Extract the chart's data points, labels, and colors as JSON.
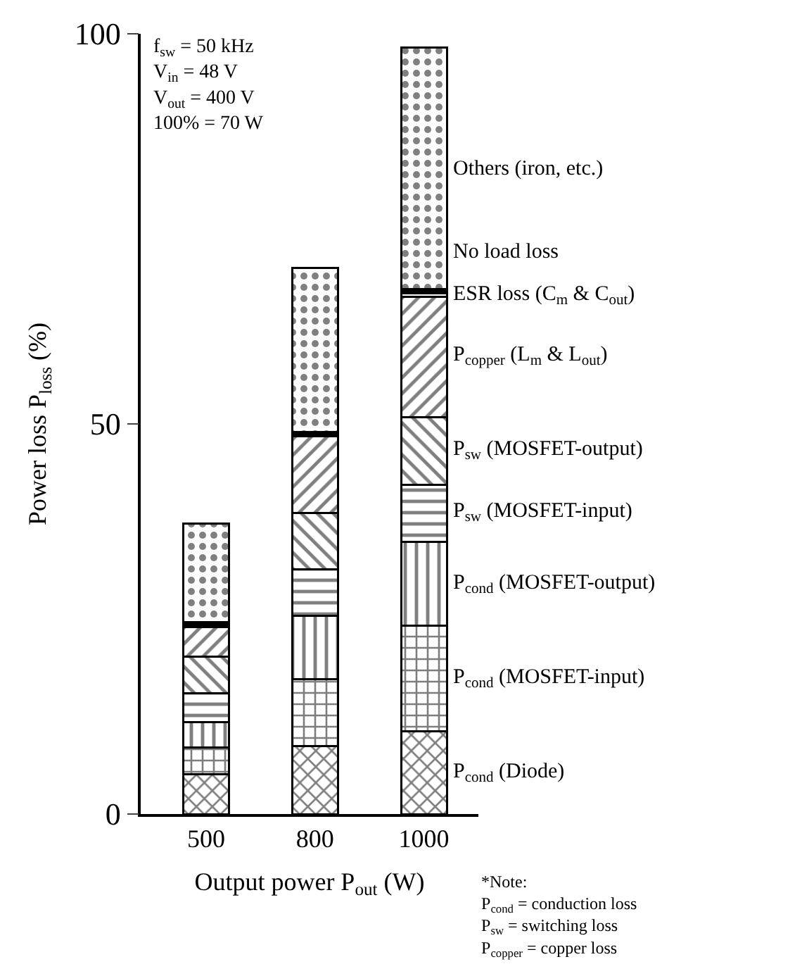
{
  "chart_data": {
    "type": "bar",
    "stacked": true,
    "xlabel": "Output power P$_{out}$ (W)",
    "ylabel": "Power loss P$_{loss}$ (%)",
    "categories": [
      "500",
      "800",
      "1000"
    ],
    "series": [
      {
        "name": "P$_{cond}$ (Diode)",
        "color": "#000000",
        "values": [
          5.1,
          8.7,
          10.6
        ]
      },
      {
        "name": "P$_{cond}$ (MOSFET-input)",
        "color": "#000000",
        "values": [
          3.4,
          8.6,
          13.5
        ]
      },
      {
        "name": "P$_{cond}$ (MOSFET-output)",
        "color": "#000000",
        "values": [
          3.3,
          8.1,
          10.8
        ]
      },
      {
        "name": "P$_{sw}$ (MOSFET-input)",
        "color": "#000000",
        "values": [
          3.7,
          6.0,
          7.3
        ]
      },
      {
        "name": "P$_{sw}$ (MOSFET-output)",
        "color": "#000000",
        "values": [
          4.7,
          7.2,
          8.7
        ]
      },
      {
        "name": "P$_{copper}$ (L$_{m}$ & L$_{out}$)",
        "color": "#000000",
        "values": [
          3.8,
          9.8,
          15.4
        ]
      },
      {
        "name": "ESR loss (C$_{m}$ & C$_{out}$)",
        "color": "#ffffff",
        "values": [
          0.2,
          0.2,
          0.4
        ]
      },
      {
        "name": "No load loss",
        "color": "#000000",
        "values": [
          0.4,
          0.4,
          0.6
        ]
      },
      {
        "name": "Others (iron, etc.)",
        "color": "#000000",
        "values": [
          12.6,
          21.0,
          30.9
        ]
      }
    ],
    "ylim": [
      0,
      100
    ],
    "yticks": [
      0,
      50,
      100
    ],
    "annotations": [
      "f$_{sw}$ = 50 kHz\nV$_{in}$ = 48 V\nV$_{out}$ = 400 V\n100% = 70 W",
      "*Note:\nP$_{cond}$ = conduction loss\nP$_{sw}$ = switching loss\nP$_{copper}$ = copper loss"
    ]
  }
}
